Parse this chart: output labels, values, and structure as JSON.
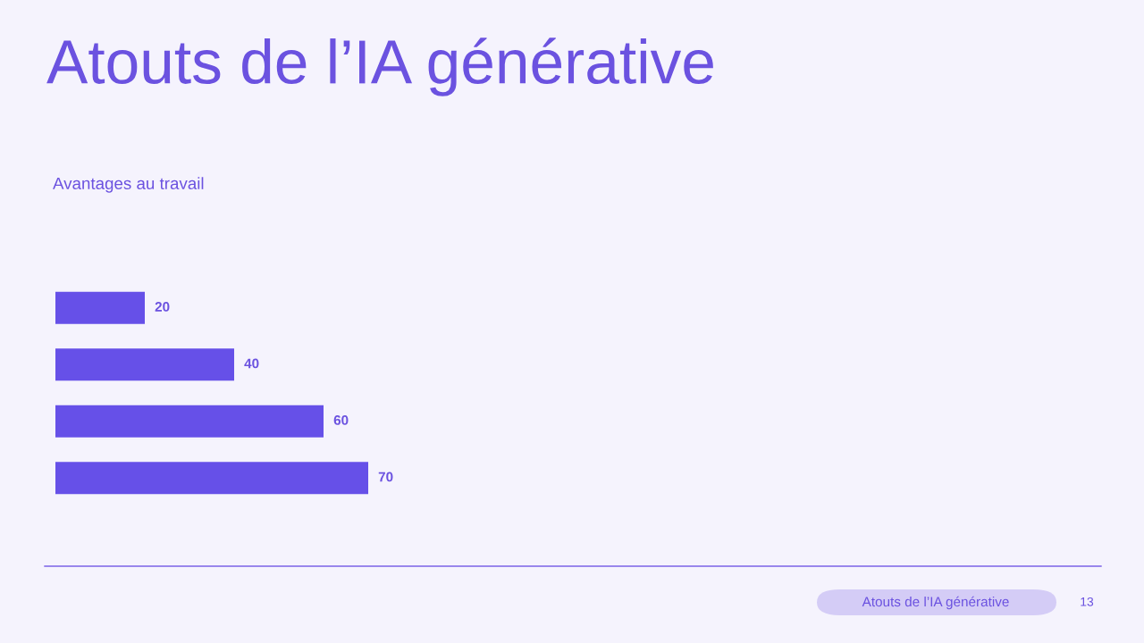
{
  "chart_data": {
    "type": "bar",
    "orientation": "horizontal",
    "title": "Atouts de l’IA générative",
    "subtitle": "Avantages au travail",
    "categories": [
      null,
      null,
      null,
      null
    ],
    "values": [
      20,
      40,
      60,
      70
    ],
    "color": "#6650e8",
    "data_labels": true,
    "annotations": [
      "Atouts de l’IA générative",
      "13"
    ]
  }
}
